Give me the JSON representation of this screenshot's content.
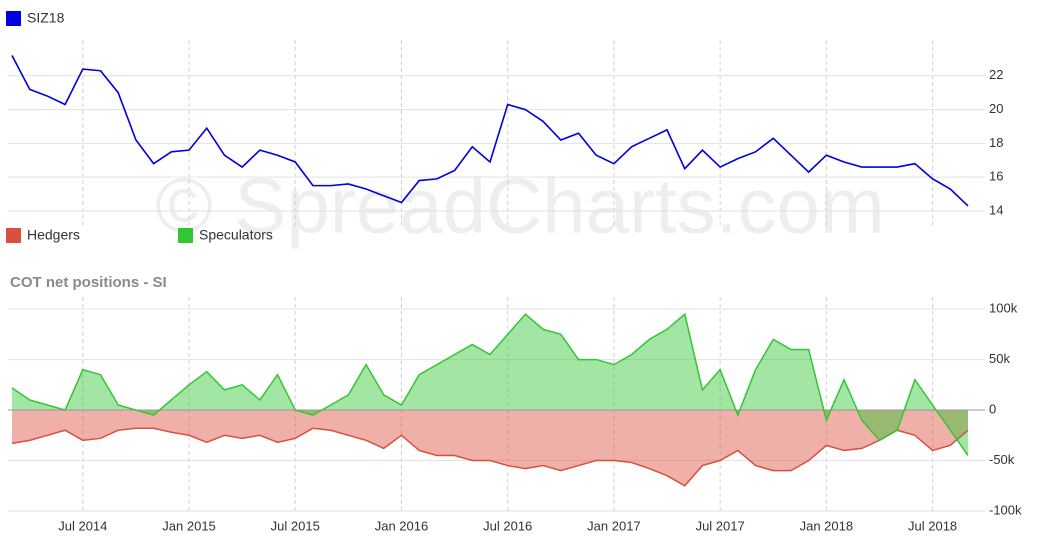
{
  "watermark": "© SpreadCharts.com",
  "chart_data": [
    {
      "type": "line",
      "xlim": [
        "2014-03",
        "2018-09"
      ],
      "x": [
        "2014-03",
        "2014-04",
        "2014-05",
        "2014-06",
        "2014-07",
        "2014-08",
        "2014-09",
        "2014-10",
        "2014-11",
        "2014-12",
        "2015-01",
        "2015-02",
        "2015-03",
        "2015-04",
        "2015-05",
        "2015-06",
        "2015-07",
        "2015-08",
        "2015-09",
        "2015-10",
        "2015-11",
        "2015-12",
        "2016-01",
        "2016-02",
        "2016-03",
        "2016-04",
        "2016-05",
        "2016-06",
        "2016-07",
        "2016-08",
        "2016-09",
        "2016-10",
        "2016-11",
        "2016-12",
        "2017-01",
        "2017-02",
        "2017-03",
        "2017-04",
        "2017-05",
        "2017-06",
        "2017-07",
        "2017-08",
        "2017-09",
        "2017-10",
        "2017-11",
        "2017-12",
        "2018-01",
        "2018-02",
        "2018-03",
        "2018-04",
        "2018-05",
        "2018-06",
        "2018-07",
        "2018-08",
        "2018-09"
      ],
      "series": [
        {
          "name": "SIZ18",
          "color": "#0000e0",
          "values": [
            23.2,
            21.2,
            20.8,
            20.3,
            22.4,
            22.3,
            21.0,
            18.2,
            16.8,
            17.5,
            17.6,
            18.9,
            17.3,
            16.6,
            17.6,
            17.3,
            16.9,
            15.5,
            15.5,
            15.6,
            15.3,
            14.9,
            14.5,
            15.8,
            15.9,
            16.4,
            17.8,
            16.9,
            20.3,
            20.0,
            19.3,
            18.2,
            18.6,
            17.3,
            16.8,
            17.8,
            18.3,
            18.8,
            16.5,
            17.6,
            16.6,
            17.1,
            17.5,
            18.3,
            17.3,
            16.3,
            17.3,
            16.9,
            16.6,
            16.6,
            16.6,
            16.8,
            15.9,
            15.3,
            14.3
          ]
        }
      ],
      "ylim": [
        13.2,
        24
      ],
      "yticks": [
        14,
        16,
        18,
        20,
        22
      ],
      "grid": true
    },
    {
      "type": "area",
      "title": "COT net positions - SI",
      "xlim": [
        "2014-03",
        "2018-09"
      ],
      "x": [
        "2014-03",
        "2014-04",
        "2014-05",
        "2014-06",
        "2014-07",
        "2014-08",
        "2014-09",
        "2014-10",
        "2014-11",
        "2014-12",
        "2015-01",
        "2015-02",
        "2015-03",
        "2015-04",
        "2015-05",
        "2015-06",
        "2015-07",
        "2015-08",
        "2015-09",
        "2015-10",
        "2015-11",
        "2015-12",
        "2016-01",
        "2016-02",
        "2016-03",
        "2016-04",
        "2016-05",
        "2016-06",
        "2016-07",
        "2016-08",
        "2016-09",
        "2016-10",
        "2016-11",
        "2016-12",
        "2017-01",
        "2017-02",
        "2017-03",
        "2017-04",
        "2017-05",
        "2017-06",
        "2017-07",
        "2017-08",
        "2017-09",
        "2017-10",
        "2017-11",
        "2017-12",
        "2018-01",
        "2018-02",
        "2018-03",
        "2018-04",
        "2018-05",
        "2018-06",
        "2018-07",
        "2018-08",
        "2018-09"
      ],
      "xticks": [
        {
          "value": "2014-07",
          "label": "Jul 2014"
        },
        {
          "value": "2015-01",
          "label": "Jan 2015"
        },
        {
          "value": "2015-07",
          "label": "Jul 2015"
        },
        {
          "value": "2016-01",
          "label": "Jan 2016"
        },
        {
          "value": "2016-07",
          "label": "Jul 2016"
        },
        {
          "value": "2017-01",
          "label": "Jan 2017"
        },
        {
          "value": "2017-07",
          "label": "Jul 2017"
        },
        {
          "value": "2018-01",
          "label": "Jan 2018"
        },
        {
          "value": "2018-07",
          "label": "Jul 2018"
        }
      ],
      "series": [
        {
          "name": "Hedgers",
          "color": "#d9503f",
          "values": [
            -33000,
            -30000,
            -25000,
            -20000,
            -30000,
            -28000,
            -20000,
            -18000,
            -18000,
            -22000,
            -25000,
            -32000,
            -25000,
            -28000,
            -25000,
            -32000,
            -28000,
            -18000,
            -20000,
            -25000,
            -30000,
            -38000,
            -25000,
            -40000,
            -45000,
            -45000,
            -50000,
            -50000,
            -55000,
            -58000,
            -55000,
            -60000,
            -55000,
            -50000,
            -50000,
            -52000,
            -58000,
            -65000,
            -75000,
            -55000,
            -50000,
            -40000,
            -55000,
            -60000,
            -60000,
            -50000,
            -35000,
            -40000,
            -38000,
            -30000,
            -20000,
            -25000,
            -40000,
            -35000,
            -20000
          ]
        },
        {
          "name": "Speculators",
          "color": "#33c633",
          "values": [
            22000,
            10000,
            5000,
            0,
            40000,
            35000,
            5000,
            0,
            -5000,
            10000,
            25000,
            38000,
            20000,
            25000,
            10000,
            35000,
            0,
            -5000,
            5000,
            15000,
            45000,
            15000,
            5000,
            35000,
            45000,
            55000,
            65000,
            55000,
            75000,
            95000,
            80000,
            75000,
            50000,
            50000,
            45000,
            55000,
            70000,
            80000,
            95000,
            20000,
            40000,
            -5000,
            40000,
            70000,
            60000,
            60000,
            -10000,
            30000,
            -10000,
            -30000,
            -20000,
            30000,
            5000,
            -20000,
            -45000
          ]
        }
      ],
      "ylim": [
        -100000,
        110000
      ],
      "yticks": [
        {
          "value": -100000,
          "label": "-100k"
        },
        {
          "value": -50000,
          "label": "-50k"
        },
        0,
        {
          "value": 50000,
          "label": "50k"
        },
        {
          "value": 100000,
          "label": "100k"
        }
      ],
      "grid": true
    }
  ]
}
